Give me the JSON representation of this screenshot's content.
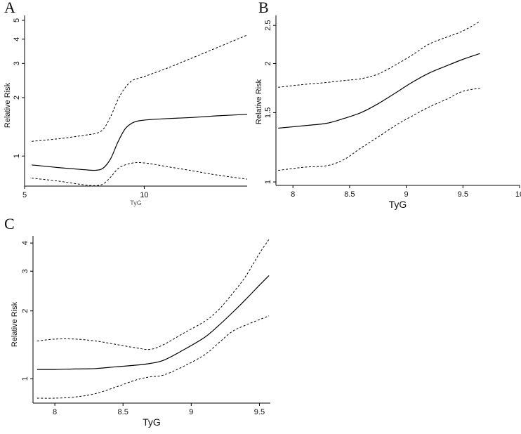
{
  "chart_data": [
    {
      "panel": "A",
      "type": "line",
      "title": "",
      "xlabel": "TyG",
      "ylabel": "Relative Risk",
      "y_scale": "log",
      "xlim": [
        5,
        14.3
      ],
      "ylim": [
        0.7,
        5.3
      ],
      "xticks": [
        5,
        10
      ],
      "yticks": [
        1,
        2,
        3,
        4,
        5
      ],
      "grid": false,
      "series": [
        {
          "style": "solid",
          "x": [
            5.3,
            6.5,
            7.5,
            8.0,
            8.3,
            8.6,
            8.9,
            9.2,
            9.5,
            9.8,
            10.2,
            11.0,
            12.0,
            13.0,
            14.3
          ],
          "y": [
            0.9,
            0.87,
            0.85,
            0.845,
            0.87,
            0.97,
            1.18,
            1.38,
            1.48,
            1.52,
            1.54,
            1.56,
            1.58,
            1.61,
            1.64
          ]
        },
        {
          "style": "dashed",
          "x": [
            5.3,
            6.5,
            7.5,
            8.0,
            8.3,
            8.6,
            8.9,
            9.2,
            9.5,
            9.8,
            10.2,
            11.0,
            12.0,
            13.0,
            14.3
          ],
          "y": [
            1.19,
            1.23,
            1.28,
            1.31,
            1.38,
            1.6,
            1.95,
            2.25,
            2.45,
            2.52,
            2.62,
            2.85,
            3.2,
            3.6,
            4.2
          ]
        },
        {
          "style": "dashed",
          "x": [
            5.3,
            6.5,
            7.5,
            8.0,
            8.3,
            8.6,
            8.9,
            9.2,
            9.5,
            9.8,
            10.2,
            11.0,
            12.0,
            13.0,
            14.3
          ],
          "y": [
            0.77,
            0.74,
            0.71,
            0.705,
            0.72,
            0.78,
            0.86,
            0.9,
            0.92,
            0.925,
            0.915,
            0.88,
            0.84,
            0.8,
            0.76
          ]
        }
      ]
    },
    {
      "panel": "B",
      "type": "line",
      "title": "",
      "xlabel": "TyG",
      "ylabel": "Relative Risk",
      "y_scale": "log",
      "xlim": [
        7.85,
        10.0
      ],
      "ylim": [
        0.98,
        2.65
      ],
      "xticks": [
        "8",
        "8.5",
        "9",
        "9.5",
        "10"
      ],
      "yticks": [
        "1",
        "1.5",
        "2",
        "2.5"
      ],
      "grid": false,
      "series": [
        {
          "style": "solid",
          "x": [
            7.87,
            8.1,
            8.3,
            8.45,
            8.6,
            8.75,
            8.9,
            9.05,
            9.2,
            9.35,
            9.5,
            9.65
          ],
          "y": [
            1.37,
            1.39,
            1.41,
            1.45,
            1.5,
            1.58,
            1.68,
            1.79,
            1.89,
            1.97,
            2.05,
            2.12
          ]
        },
        {
          "style": "dashed",
          "x": [
            7.87,
            8.1,
            8.3,
            8.45,
            8.6,
            8.75,
            8.9,
            9.05,
            9.2,
            9.35,
            9.5,
            9.65
          ],
          "y": [
            1.74,
            1.77,
            1.79,
            1.81,
            1.83,
            1.88,
            1.98,
            2.1,
            2.24,
            2.33,
            2.42,
            2.56
          ]
        },
        {
          "style": "dashed",
          "x": [
            7.87,
            8.1,
            8.3,
            8.45,
            8.6,
            8.75,
            8.9,
            9.05,
            9.2,
            9.35,
            9.5,
            9.65
          ],
          "y": [
            1.07,
            1.09,
            1.1,
            1.14,
            1.22,
            1.3,
            1.39,
            1.47,
            1.55,
            1.62,
            1.7,
            1.73
          ]
        }
      ]
    },
    {
      "panel": "C",
      "type": "line",
      "title": "",
      "xlabel": "TyG",
      "ylabel": "Relative Risk",
      "y_scale": "log",
      "xlim": [
        7.84,
        9.58
      ],
      "ylim": [
        0.78,
        4.3
      ],
      "xticks": [
        "8",
        "8.5",
        "9",
        "9.5"
      ],
      "yticks": [
        "1",
        "2",
        "3",
        "4"
      ],
      "grid": false,
      "series": [
        {
          "style": "solid",
          "x": [
            7.87,
            8.0,
            8.15,
            8.3,
            8.45,
            8.6,
            8.7,
            8.8,
            8.95,
            9.1,
            9.2,
            9.3,
            9.4,
            9.5,
            9.57
          ],
          "y": [
            1.1,
            1.1,
            1.105,
            1.11,
            1.13,
            1.15,
            1.17,
            1.21,
            1.35,
            1.53,
            1.72,
            1.96,
            2.25,
            2.6,
            2.87
          ]
        },
        {
          "style": "dashed",
          "x": [
            7.87,
            8.0,
            8.15,
            8.3,
            8.45,
            8.6,
            8.7,
            8.8,
            8.95,
            9.1,
            9.2,
            9.3,
            9.4,
            9.5,
            9.57
          ],
          "y": [
            1.47,
            1.5,
            1.5,
            1.47,
            1.42,
            1.37,
            1.35,
            1.42,
            1.6,
            1.8,
            2.02,
            2.38,
            2.85,
            3.6,
            4.15
          ]
        },
        {
          "style": "dashed",
          "x": [
            7.87,
            8.0,
            8.15,
            8.3,
            8.45,
            8.6,
            8.7,
            8.8,
            8.95,
            9.1,
            9.2,
            9.3,
            9.4,
            9.5,
            9.57
          ],
          "y": [
            0.82,
            0.82,
            0.83,
            0.86,
            0.92,
            0.99,
            1.02,
            1.04,
            1.14,
            1.28,
            1.44,
            1.62,
            1.73,
            1.83,
            1.9
          ]
        }
      ]
    }
  ]
}
